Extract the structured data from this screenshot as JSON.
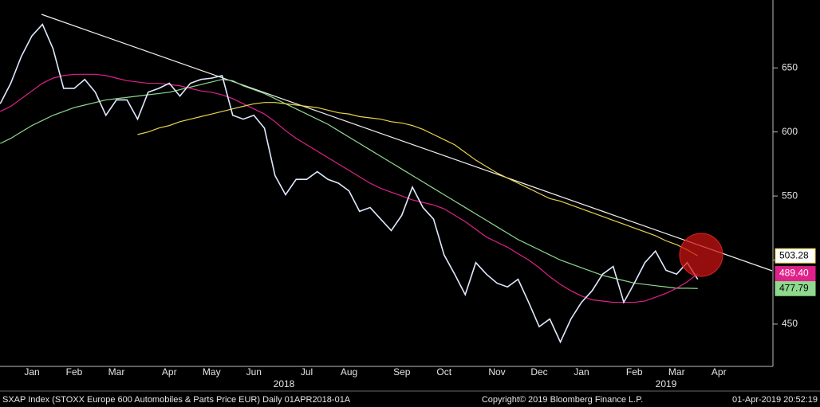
{
  "chart_data": {
    "type": "line",
    "categories": [
      null,
      null,
      null,
      "Jan",
      null,
      null,
      null,
      "Feb",
      null,
      null,
      null,
      "Mar",
      null,
      null,
      null,
      null,
      "Apr",
      null,
      null,
      null,
      "May",
      null,
      null,
      null,
      "Jun",
      null,
      null,
      null,
      null,
      "Jul",
      null,
      null,
      null,
      "Aug",
      null,
      null,
      null,
      null,
      "Sep",
      null,
      null,
      null,
      "Oct",
      null,
      null,
      null,
      null,
      "Nov",
      null,
      null,
      null,
      "Dec",
      null,
      null,
      null,
      "Jan",
      null,
      null,
      null,
      null,
      "Feb",
      null,
      null,
      null,
      "Mar",
      null,
      null,
      null,
      "Apr"
    ],
    "years": [
      "2018",
      "2019"
    ],
    "ylim": [
      417,
      703
    ],
    "yticks": [
      450,
      500,
      550,
      600,
      650
    ],
    "series": [
      {
        "color": "#dfe9ff",
        "values": [
          622,
          638,
          659,
          675,
          684,
          665,
          634,
          634,
          641,
          631,
          613,
          625,
          625,
          610,
          631,
          634,
          638,
          628,
          638,
          641,
          642,
          644,
          613,
          610,
          613,
          603,
          566,
          551,
          563,
          563,
          569,
          563,
          560,
          554,
          538,
          541,
          532,
          523,
          535,
          557,
          541,
          532,
          504,
          489,
          473,
          498,
          489,
          482,
          479,
          485,
          467,
          448,
          454,
          436,
          454,
          467,
          476,
          489,
          495,
          467,
          482,
          498,
          507,
          492,
          489,
          498,
          485,
          null,
          null
        ]
      },
      {
        "color": "#e8d44d",
        "last_label": "503.28",
        "values": [
          null,
          null,
          null,
          null,
          null,
          null,
          null,
          null,
          null,
          null,
          null,
          null,
          null,
          598,
          600,
          603,
          605,
          608,
          610,
          612,
          614,
          616,
          618,
          620,
          622,
          623,
          623,
          622,
          621,
          620,
          619,
          617,
          615,
          614,
          612,
          611,
          610,
          608,
          607,
          605,
          602,
          598,
          594,
          590,
          584,
          578,
          573,
          568,
          564,
          560,
          556,
          552,
          548,
          546,
          543,
          540,
          537,
          534,
          531,
          528,
          525,
          522,
          519,
          515,
          512,
          508,
          503.28,
          null,
          null
        ]
      },
      {
        "color": "#e0218a",
        "last_label": "489.40",
        "values": [
          616,
          620,
          626,
          632,
          638,
          642,
          644,
          645,
          645,
          645,
          644,
          642,
          640,
          639,
          638,
          638,
          637,
          636,
          634,
          632,
          631,
          629,
          626,
          622,
          618,
          614,
          608,
          601,
          595,
          590,
          585,
          580,
          575,
          570,
          565,
          560,
          556,
          553,
          550,
          547,
          545,
          543,
          540,
          535,
          530,
          524,
          518,
          514,
          510,
          505,
          500,
          494,
          487,
          481,
          476,
          472,
          469,
          468,
          467,
          467,
          467,
          468,
          471,
          474,
          478,
          483,
          489.4,
          null,
          null
        ]
      },
      {
        "color": "#8fd98f",
        "last_label": "477.79",
        "values": [
          591,
          595,
          600,
          605,
          609,
          613,
          616,
          619,
          621,
          623,
          625,
          626,
          627,
          628,
          629,
          630,
          631,
          633,
          635,
          637,
          639,
          641,
          640,
          636,
          633,
          630,
          626,
          622,
          618,
          614,
          610,
          606,
          601,
          596,
          591,
          586,
          581,
          576,
          571,
          566,
          561,
          556,
          551,
          546,
          541,
          536,
          531,
          526,
          521,
          516,
          512,
          508,
          504,
          500,
          497,
          494,
          491,
          488,
          486,
          484,
          482,
          481,
          480,
          479,
          478,
          478,
          477.79,
          null,
          null
        ]
      }
    ],
    "footer_left": "SXAP Index (STOXX Europe 600 Automobiles & Parts Price EUR)  Daily 01APR2018-01A",
    "footer_center": "Copyright© 2019 Bloomberg Finance L.P.",
    "footer_right": "01-Apr-2019 20:52:19"
  }
}
